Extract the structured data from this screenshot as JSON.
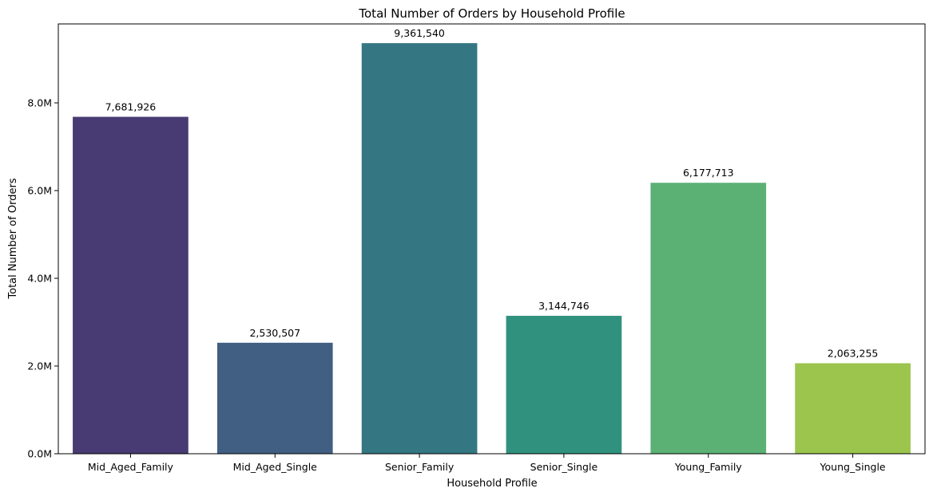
{
  "chart_data": {
    "type": "bar",
    "title": "Total Number of Orders by Household Profile",
    "xlabel": "Household Profile",
    "ylabel": "Total Number of Orders",
    "categories": [
      "Mid_Aged_Family",
      "Mid_Aged_Single",
      "Senior_Family",
      "Senior_Single",
      "Young_Family",
      "Young_Single"
    ],
    "values": [
      7681926,
      2530507,
      9361540,
      3144746,
      6177713,
      2063255
    ],
    "data_labels": [
      "7,681,926",
      "2,530,507",
      "9,361,540",
      "3,144,746",
      "6,177,713",
      "2,063,255"
    ],
    "colors": [
      "#483a72",
      "#405f82",
      "#347782",
      "#30917e",
      "#5ab173",
      "#9bc54d"
    ],
    "ylim": [
      0,
      9800000
    ],
    "yticks": [
      0,
      2000000,
      4000000,
      6000000,
      8000000
    ],
    "ytick_labels": [
      "0.0M",
      "2.0M",
      "4.0M",
      "6.0M",
      "8.0M"
    ],
    "grid": false,
    "legend": false
  }
}
